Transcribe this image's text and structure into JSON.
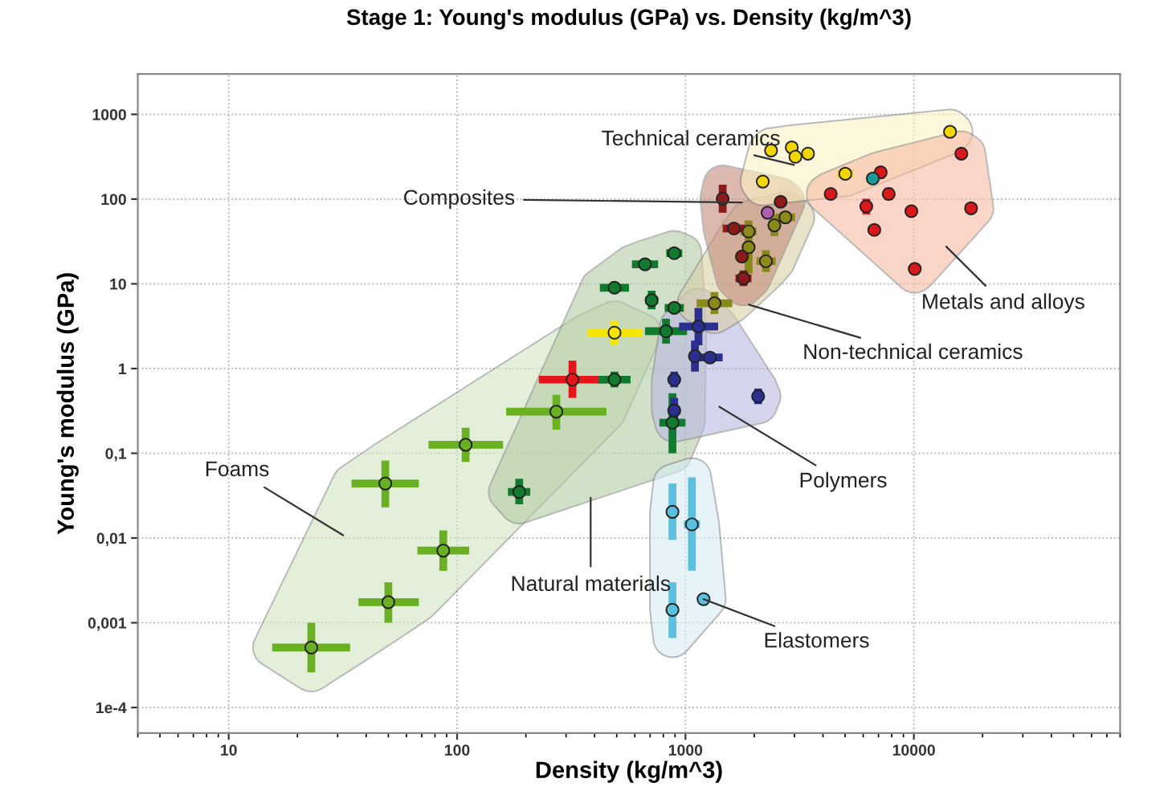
{
  "chart_data": {
    "type": "scatter",
    "title": "Stage 1: Young's modulus (GPa) vs. Density (kg/m^3)",
    "xlabel": "Density (kg/m^3)",
    "ylabel": "Young's modulus (GPa)",
    "log": "xy",
    "grid": true,
    "marker": "circle",
    "xlim": [
      4,
      80000
    ],
    "ylim": [
      5e-05,
      3000
    ],
    "xticks": [
      10,
      100,
      1000,
      10000
    ],
    "yticks": [
      {
        "value": 0.0001,
        "label": "1e-4"
      },
      {
        "value": 0.001,
        "label": "0,001"
      },
      {
        "value": 0.01,
        "label": "0,01"
      },
      {
        "value": 0.1,
        "label": "0,1"
      },
      1,
      10,
      100,
      1000
    ],
    "series": [
      {
        "color": "#d3e6c3",
        "colors": [
          "#6ab023",
          "#6ab023",
          "#6ab023",
          "#6ab023",
          "#6ab023",
          "#6ab023",
          "#e3171b",
          "#f7e600"
        ],
        "x": [
          23,
          50,
          87,
          48.5,
          109,
          272,
          320,
          489
        ],
        "values": [
          0.00051,
          0.00175,
          0.0071,
          0.044,
          0.126,
          0.31,
          0.74,
          2.65
        ],
        "xerrors": [
          [
            15.5,
            34
          ],
          [
            37,
            68
          ],
          [
            67,
            113
          ],
          [
            34.5,
            68
          ],
          [
            75,
            159
          ],
          [
            164,
            451
          ],
          [
            228,
            450
          ],
          [
            371,
            644
          ]
        ],
        "errors": [
          [
            0.00026,
            0.001
          ],
          [
            0.001,
            0.003
          ],
          [
            0.0041,
            0.0123
          ],
          [
            0.023,
            0.082
          ],
          [
            0.079,
            0.2
          ],
          [
            0.19,
            0.49
          ],
          [
            0.45,
            1.24
          ],
          [
            1.9,
            3.7
          ]
        ]
      },
      {
        "color": "#b3cca4",
        "colors": [
          "#117a2f",
          "#117a2f",
          "#117a2f",
          "#117a2f",
          "#117a2f",
          "#117a2f",
          "#117a2f",
          "#117a2f",
          "#117a2f"
        ],
        "x": [
          187,
          489,
          877,
          822,
          711,
          489,
          665,
          893,
          893
        ],
        "values": [
          0.035,
          0.74,
          0.23,
          2.76,
          6.4,
          9.0,
          17,
          23,
          5.2
        ],
        "xerrors": [
          [
            167,
            209
          ],
          [
            415,
            575
          ],
          [
            769,
            1000
          ],
          [
            665,
            1016
          ],
          [
            667,
            759
          ],
          [
            422,
            566
          ],
          [
            583,
            759
          ],
          [
            824,
            968
          ],
          [
            811,
            984
          ]
        ],
        "errors": [
          [
            0.025,
            0.05
          ],
          [
            0.6,
            0.92
          ],
          [
            0.1,
            0.51
          ],
          [
            1.97,
            3.87
          ],
          [
            5.0,
            8.3
          ],
          [
            8.3,
            9.8
          ],
          [
            15,
            19.4
          ],
          [
            21,
            25
          ],
          [
            4.8,
            5.7
          ]
        ]
      },
      {
        "color": "#b9b9e2",
        "colors": [
          "#2b2f8f",
          "#2b2f8f",
          "#2b2f8f",
          "#2b2f8f",
          "#2b2f8f",
          "#2b2f8f"
        ],
        "x": [
          1140,
          1100,
          1280,
          893,
          2080,
          893
        ],
        "values": [
          3.13,
          1.4,
          1.35,
          0.74,
          0.47,
          0.32
        ],
        "xerrors": [
          [
            938,
            1390
          ],
          [
            1050,
            1156
          ],
          [
            1119,
            1455
          ],
          [
            865,
            923
          ],
          [
            2014,
            2148
          ],
          [
            865,
            923
          ]
        ],
        "errors": [
          [
            1.88,
            5.2
          ],
          [
            0.92,
            2.14
          ],
          [
            1.24,
            1.47
          ],
          [
            0.6,
            0.92
          ],
          [
            0.38,
            0.58
          ],
          [
            0.23,
            0.45
          ]
        ]
      },
      {
        "color": "#d6ecf6",
        "colors": [
          "#5bc0de",
          "#5bc0de",
          "#5bc0de",
          "#5bc0de"
        ],
        "x": [
          1067,
          877,
          877,
          1200
        ],
        "values": [
          0.0145,
          0.0204,
          0.00142,
          0.0019
        ],
        "xerrors": [
          [
            984,
            1156
          ],
          [
            849,
            906
          ],
          [
            849,
            906
          ],
          [
            1159,
            1236
          ]
        ],
        "errors": [
          [
            0.0041,
            0.052
          ],
          [
            0.0095,
            0.044
          ],
          [
            0.00066,
            0.003
          ],
          [
            0.00175,
            0.00207
          ]
        ]
      },
      {
        "color": "#d9cfa6",
        "colors": [
          "#8a8a1a",
          "#8a8a1a",
          "#8a8a1a",
          "#8a8a1a",
          "#8a8a1a",
          "#8a8a1a"
        ],
        "x": [
          1340,
          2250,
          2740,
          1890,
          1890,
          2450
        ],
        "values": [
          5.9,
          18.5,
          61,
          27,
          41.5,
          49
        ],
        "xerrors": [
          [
            1119,
            1603
          ],
          [
            2046,
            2483
          ],
          [
            2489,
            3020
          ],
          [
            1828,
            1950
          ],
          [
            1742,
            2046
          ],
          [
            2371,
            2529
          ]
        ],
        "errors": [
          [
            4.4,
            8.0
          ],
          [
            13.8,
            24.9
          ],
          [
            51,
            72
          ],
          [
            13.2,
            56
          ],
          [
            38,
            45
          ],
          [
            36.5,
            66
          ]
        ]
      },
      {
        "color": "#c48a7a",
        "colors": [
          "#8b1a1a",
          "#8b1a1a",
          "#8b1a1a",
          "#8b1a1a",
          "#8b1a1a",
          "#b05cb0"
        ],
        "x": [
          1455,
          1795,
          1630,
          1766,
          2610,
          2290
        ],
        "values": [
          101,
          11.6,
          45,
          21,
          93,
          69
        ],
        "xerrors": [
          [
            1409,
            1503
          ],
          [
            1656,
            1945
          ],
          [
            1455,
            1824
          ],
          [
            1683,
            1854
          ],
          [
            2489,
            2742
          ],
          [
            2218,
            2366
          ]
        ],
        "errors": [
          [
            69,
            148
          ],
          [
            9.4,
            14.4
          ],
          [
            43.3,
            47
          ],
          [
            20.2,
            22
          ],
          [
            82,
            105
          ],
          [
            63,
            75
          ]
        ]
      },
      {
        "color": "#fbf2c2",
        "colors": [
          "#f2d600",
          "#f2d600",
          "#f2d600",
          "#f2d600",
          "#f2d600",
          "#f2d600",
          "#f2d600"
        ],
        "x": [
          2370,
          2920,
          3030,
          3440,
          5010,
          2180,
          14400
        ],
        "values": [
          375,
          407,
          316,
          344,
          199,
          161,
          622
        ],
        "xerrors": [
          [
            2296,
            2449
          ],
          [
            2831,
            3020
          ],
          [
            2931,
            3126
          ],
          [
            3334,
            3556
          ],
          [
            4624,
            5433
          ],
          [
            2113,
            2254
          ],
          [
            13960,
            14890
          ]
        ],
        "errors": [
          [
            344,
            408
          ],
          [
            374,
            443
          ],
          [
            290,
            345
          ],
          [
            316,
            375
          ],
          [
            182,
            216
          ],
          [
            142,
            182
          ],
          [
            571,
            678
          ]
        ]
      },
      {
        "color": "#f6bba3",
        "colors": [
          "#d7191c",
          "#d7191c",
          "#d7191c",
          "#d7191c",
          "#d7191c",
          "#d7191c",
          "#d7191c",
          "#d7191c",
          "#d7191c",
          "#1a9a9a"
        ],
        "x": [
          16140,
          7760,
          6190,
          4325,
          6710,
          9750,
          17800,
          10090,
          7160,
          6610
        ],
        "values": [
          344,
          115,
          82,
          115,
          43.3,
          72,
          78,
          15,
          207,
          175
        ],
        "xerrors": [
          [
            15380,
            16940
          ],
          [
            7396,
            8147
          ],
          [
            5998,
            6397
          ],
          [
            4121,
            4539
          ],
          [
            6501,
            6934
          ],
          [
            9441,
            10070
          ],
          [
            17250,
            18390
          ],
          [
            9616,
            10590
          ],
          [
            6823,
            7516
          ],
          [
            6397,
            6823
          ]
        ],
        "errors": [
          [
            316,
            375
          ],
          [
            97,
            136
          ],
          [
            66,
            101
          ],
          [
            105,
            125
          ],
          [
            39.7,
            47.2
          ],
          [
            66,
            78
          ],
          [
            72,
            85
          ],
          [
            13.2,
            17
          ],
          [
            199,
            216
          ],
          [
            161,
            190
          ]
        ]
      }
    ],
    "annotations": [
      "Technical ceramics",
      "Composites",
      "Metals and alloys",
      "Non-technical ceramics",
      "Polymers",
      "Foams",
      "Natural materials",
      {
        "text": "Elastomers",
        "x": 1200,
        "y": 0.0019
      }
    ]
  }
}
